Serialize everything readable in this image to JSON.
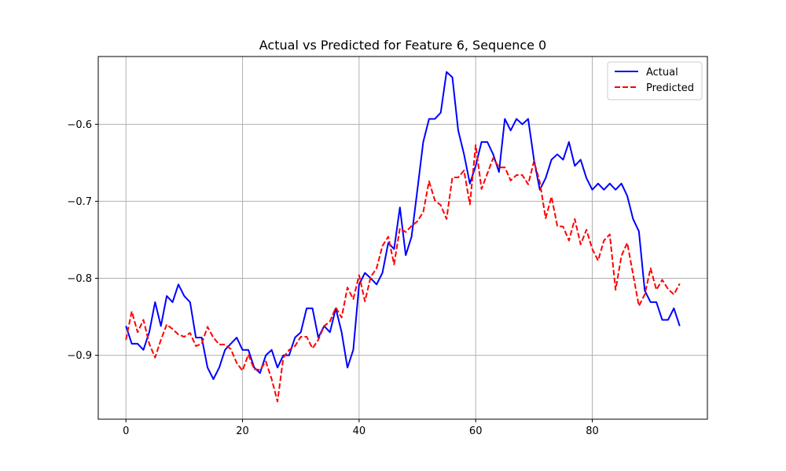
{
  "chart_data": {
    "type": "line",
    "title": "Actual vs Predicted for Feature 6, Sequence 0",
    "xlabel": "",
    "ylabel": "",
    "xlim": [
      -4.75,
      99.75
    ],
    "ylim": [
      -0.983,
      -0.512
    ],
    "xticks": [
      0,
      20,
      40,
      60,
      80
    ],
    "yticks": [
      -0.9,
      -0.8,
      -0.7,
      -0.6
    ],
    "ytick_labels": [
      "−0.9",
      "−0.8",
      "−0.7",
      "−0.6"
    ],
    "grid": true,
    "legend_position": "top-right",
    "series": [
      {
        "name": "Actual",
        "color": "#0000ff",
        "style": "solid",
        "values": [
          -0.862,
          -0.885,
          -0.885,
          -0.893,
          -0.87,
          -0.831,
          -0.862,
          -0.823,
          -0.831,
          -0.808,
          -0.823,
          -0.831,
          -0.877,
          -0.877,
          -0.916,
          -0.931,
          -0.916,
          -0.893,
          -0.885,
          -0.877,
          -0.893,
          -0.893,
          -0.916,
          -0.923,
          -0.9,
          -0.893,
          -0.916,
          -0.9,
          -0.9,
          -0.877,
          -0.87,
          -0.839,
          -0.839,
          -0.877,
          -0.862,
          -0.87,
          -0.839,
          -0.87,
          -0.916,
          -0.893,
          -0.808,
          -0.793,
          -0.8,
          -0.808,
          -0.793,
          -0.754,
          -0.762,
          -0.708,
          -0.77,
          -0.746,
          -0.685,
          -0.623,
          -0.593,
          -0.593,
          -0.585,
          -0.532,
          -0.539,
          -0.608,
          -0.639,
          -0.677,
          -0.654,
          -0.623,
          -0.623,
          -0.639,
          -0.662,
          -0.593,
          -0.608,
          -0.593,
          -0.6,
          -0.593,
          -0.646,
          -0.685,
          -0.67,
          -0.646,
          -0.639,
          -0.646,
          -0.623,
          -0.654,
          -0.646,
          -0.67,
          -0.685,
          -0.677,
          -0.685,
          -0.677,
          -0.685,
          -0.677,
          -0.693,
          -0.723,
          -0.739,
          -0.816,
          -0.831,
          -0.831,
          -0.854,
          -0.854,
          -0.839,
          -0.862
        ]
      },
      {
        "name": "Predicted",
        "color": "#ff0000",
        "style": "dashed",
        "values": [
          -0.88,
          -0.843,
          -0.87,
          -0.854,
          -0.885,
          -0.903,
          -0.88,
          -0.86,
          -0.866,
          -0.873,
          -0.876,
          -0.871,
          -0.888,
          -0.885,
          -0.863,
          -0.877,
          -0.886,
          -0.886,
          -0.892,
          -0.91,
          -0.92,
          -0.899,
          -0.918,
          -0.919,
          -0.908,
          -0.931,
          -0.96,
          -0.903,
          -0.893,
          -0.888,
          -0.876,
          -0.876,
          -0.891,
          -0.88,
          -0.862,
          -0.856,
          -0.838,
          -0.851,
          -0.812,
          -0.827,
          -0.796,
          -0.83,
          -0.798,
          -0.787,
          -0.758,
          -0.746,
          -0.782,
          -0.735,
          -0.74,
          -0.732,
          -0.726,
          -0.714,
          -0.674,
          -0.699,
          -0.705,
          -0.723,
          -0.669,
          -0.669,
          -0.66,
          -0.704,
          -0.627,
          -0.684,
          -0.664,
          -0.644,
          -0.656,
          -0.656,
          -0.673,
          -0.666,
          -0.666,
          -0.678,
          -0.648,
          -0.675,
          -0.722,
          -0.694,
          -0.732,
          -0.733,
          -0.751,
          -0.723,
          -0.756,
          -0.737,
          -0.762,
          -0.777,
          -0.751,
          -0.743,
          -0.815,
          -0.771,
          -0.754,
          -0.795,
          -0.836,
          -0.821,
          -0.787,
          -0.815,
          -0.802,
          -0.814,
          -0.821,
          -0.807
        ]
      }
    ]
  }
}
